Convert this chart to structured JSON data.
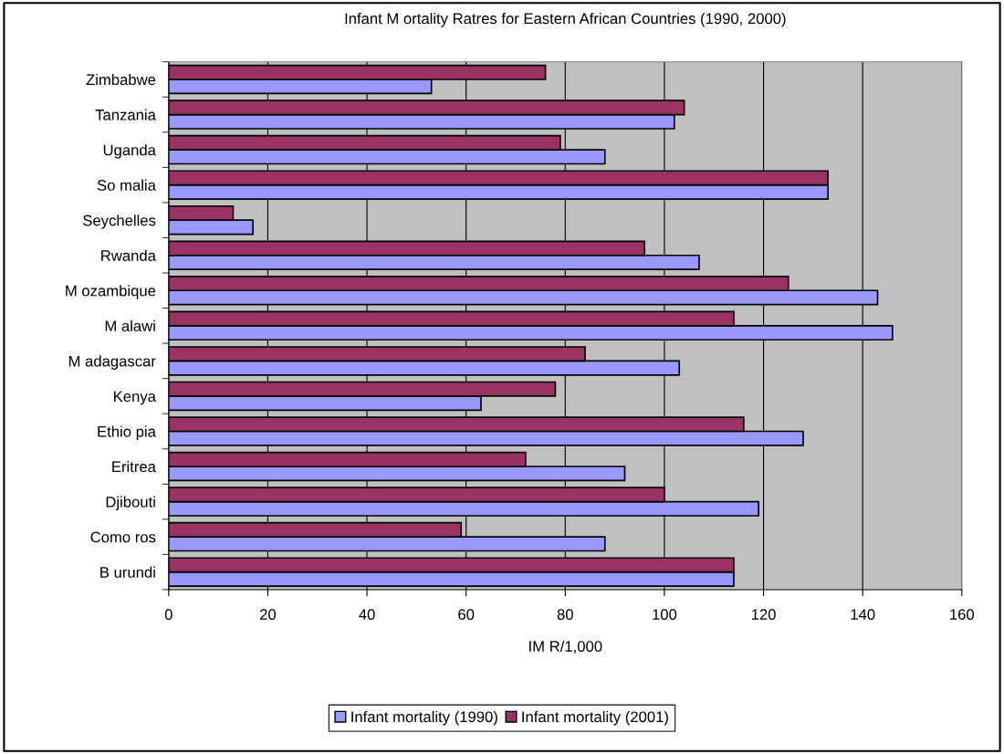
{
  "chart_data": {
    "type": "bar",
    "orientation": "horizontal",
    "title": "Infant M ortality Ratres for Eastern African Countries (1990, 2000)",
    "xlabel": "IM R/1,000",
    "categories": [
      "Zimbabwe",
      "Tanzania",
      "Uganda",
      "So malia",
      "Seychelles",
      "Rwanda",
      "M ozambique",
      "M alawi",
      "M adagascar",
      "Kenya",
      "Ethio pia",
      "Eritrea",
      "Djibouti",
      "Como ros",
      "B urundi"
    ],
    "series": [
      {
        "name": "Infant mortality (1990)",
        "color": "#9999ff",
        "values": [
          53,
          102,
          88,
          133,
          17,
          107,
          143,
          146,
          103,
          63,
          128,
          92,
          119,
          88,
          114
        ]
      },
      {
        "name": "Infant mortality (2001)",
        "color": "#993366",
        "values": [
          76,
          104,
          79,
          133,
          13,
          96,
          125,
          114,
          84,
          78,
          116,
          72,
          100,
          59,
          114
        ]
      }
    ],
    "xlim": [
      0,
      160
    ],
    "xticks": [
      0,
      20,
      40,
      60,
      80,
      100,
      120,
      140,
      160
    ],
    "grid": "x",
    "legend": "bottom"
  }
}
